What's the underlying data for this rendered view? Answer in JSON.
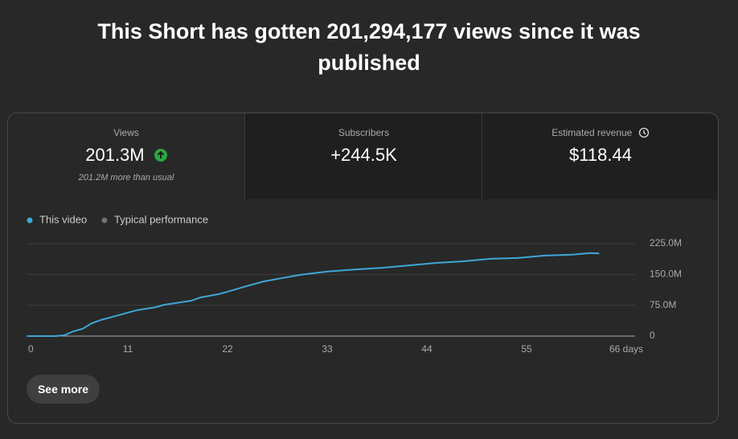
{
  "header": {
    "title": "This Short has gotten 201,294,177 views since it was published"
  },
  "metrics": [
    {
      "label": "Views",
      "value": "201.3M",
      "note": "201.2M more than usual"
    },
    {
      "label": "Subscribers",
      "value": "+244.5K"
    },
    {
      "label": "Estimated revenue",
      "value": "$118.44"
    }
  ],
  "chart_data": {
    "type": "line",
    "x": [
      0,
      3,
      4,
      5,
      6,
      7,
      8,
      10,
      12,
      14,
      15,
      18,
      19,
      21,
      22,
      24,
      26,
      28,
      30,
      33,
      36,
      39,
      42,
      45,
      48,
      51,
      54,
      57,
      60,
      62,
      63
    ],
    "series": [
      {
        "name": "This video",
        "color": "#3ea6d7",
        "values": [
          0,
          0,
          2,
          11.7,
          17.6,
          31,
          39,
          51,
          63,
          70,
          76,
          86,
          94,
          102,
          108,
          121,
          133,
          141,
          149,
          157,
          162,
          166,
          172,
          178,
          182,
          188,
          190,
          196,
          198,
          202,
          201.3
        ]
      }
    ],
    "reference": {
      "name": "Typical performance",
      "color": "#717171"
    },
    "xlim": [
      0,
      66
    ],
    "xticks": [
      0,
      11,
      22,
      33,
      44,
      55,
      {
        "value": 66,
        "label": "66 days"
      }
    ],
    "ylim": [
      0,
      225
    ],
    "yticks": [
      0,
      {
        "value": 75,
        "label": "75.0M"
      },
      {
        "value": 150,
        "label": "150.0M"
      },
      {
        "value": 225,
        "label": "225.0M"
      }
    ],
    "grid": true
  },
  "button": {
    "label": "See more"
  }
}
